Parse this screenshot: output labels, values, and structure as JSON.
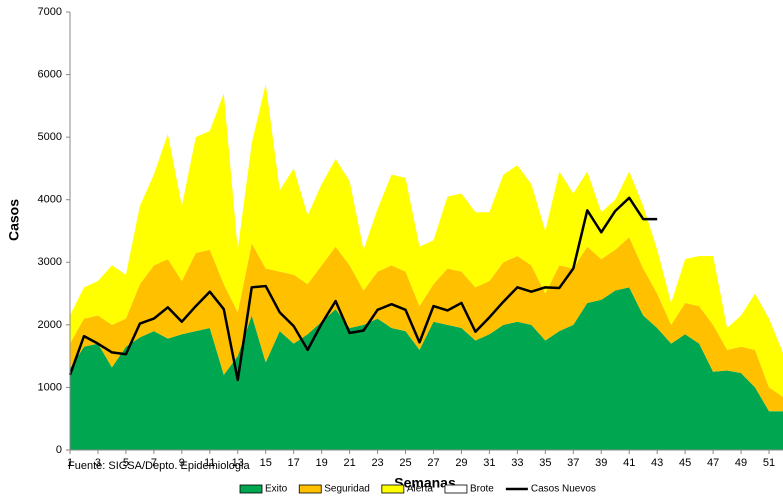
{
  "chart_data": {
    "type": "area",
    "x": [
      1,
      2,
      3,
      4,
      5,
      6,
      7,
      8,
      9,
      10,
      11,
      12,
      13,
      14,
      15,
      16,
      17,
      18,
      19,
      20,
      21,
      22,
      23,
      24,
      25,
      26,
      27,
      28,
      29,
      30,
      31,
      32,
      33,
      34,
      35,
      36,
      37,
      38,
      39,
      40,
      41,
      42,
      43,
      44,
      45,
      46,
      47,
      48,
      49,
      50,
      51,
      52
    ],
    "xlim": [
      1,
      52
    ],
    "xticks": [
      1,
      3,
      5,
      7,
      9,
      11,
      13,
      15,
      17,
      19,
      21,
      23,
      25,
      27,
      29,
      31,
      33,
      35,
      37,
      39,
      41,
      43,
      45,
      47,
      49,
      51
    ],
    "ylim": [
      0,
      7000
    ],
    "yticks": [
      0,
      1000,
      2000,
      3000,
      4000,
      5000,
      6000,
      7000
    ],
    "x_label": "Semanas",
    "y_label": "Casos",
    "source": "Fuente: SIGSA/Depto. Epidemiologia",
    "series": [
      {
        "name": "Exito",
        "color": "#00a650",
        "stacked": true,
        "values": [
          1300,
          1650,
          1700,
          1320,
          1650,
          1800,
          1900,
          1780,
          1850,
          1900,
          1950,
          1200,
          1500,
          2150,
          1400,
          1900,
          1700,
          1850,
          2050,
          2250,
          1950,
          2000,
          2100,
          1950,
          1900,
          1600,
          2050,
          2000,
          1950,
          1750,
          1850,
          2000,
          2050,
          2000,
          1750,
          1900,
          2000,
          2350,
          2400,
          2550,
          2600,
          2150,
          1950,
          1700,
          1850,
          1700,
          1250,
          1270,
          1230,
          1000,
          620,
          620
        ]
      },
      {
        "name": "Seguridad",
        "color": "#ffc000",
        "stacked": true,
        "values": [
          400,
          450,
          450,
          680,
          450,
          850,
          1050,
          1270,
          850,
          1250,
          1250,
          1450,
          700,
          1150,
          1500,
          950,
          1100,
          800,
          900,
          1000,
          1000,
          550,
          750,
          1000,
          950,
          700,
          600,
          900,
          900,
          850,
          850,
          1000,
          1050,
          950,
          750,
          1050,
          900,
          900,
          650,
          650,
          800,
          750,
          550,
          300,
          500,
          600,
          750,
          330,
          420,
          600,
          380,
          230
        ]
      },
      {
        "name": "Alerta",
        "color": "#ffff00",
        "stacked": true,
        "values": [
          450,
          500,
          550,
          950,
          700,
          1250,
          1450,
          2000,
          1200,
          1850,
          1900,
          3050,
          1000,
          1600,
          2950,
          1300,
          1700,
          1100,
          1300,
          1400,
          1350,
          650,
          1000,
          1450,
          1500,
          950,
          700,
          1150,
          1250,
          1200,
          1100,
          1400,
          1450,
          1300,
          1000,
          1500,
          1200,
          1200,
          750,
          800,
          1050,
          1000,
          700,
          350,
          700,
          800,
          1100,
          350,
          500,
          900,
          1100,
          700
        ]
      },
      {
        "name": "Brote",
        "color": "#ffffff",
        "stacked": true,
        "values": [
          null,
          null,
          null,
          null,
          null,
          null,
          null,
          null,
          null,
          null,
          null,
          null,
          null,
          null,
          null,
          null,
          null,
          null,
          null,
          null,
          null,
          null,
          null,
          null,
          null,
          null,
          null,
          null,
          null,
          null,
          null,
          null,
          null,
          null,
          null,
          null,
          null,
          null,
          null,
          null,
          null,
          null,
          null,
          null,
          null,
          null,
          null,
          null,
          null,
          null,
          null,
          null
        ]
      },
      {
        "name": "Casos Nuevos",
        "color": "#000000",
        "type": "line",
        "values": [
          1200,
          1820,
          1700,
          1560,
          1530,
          2020,
          2100,
          2280,
          2050,
          2300,
          2530,
          2250,
          1120,
          2600,
          2620,
          2200,
          1980,
          1600,
          2020,
          2380,
          1870,
          1910,
          2240,
          2330,
          2240,
          1720,
          2300,
          2230,
          2350,
          1890,
          2120,
          2370,
          2600,
          2530,
          2600,
          2590,
          2900,
          3830,
          3480,
          3820,
          4030,
          3690,
          3690,
          null,
          null,
          null,
          null,
          null,
          null,
          null,
          null,
          null
        ]
      }
    ]
  }
}
